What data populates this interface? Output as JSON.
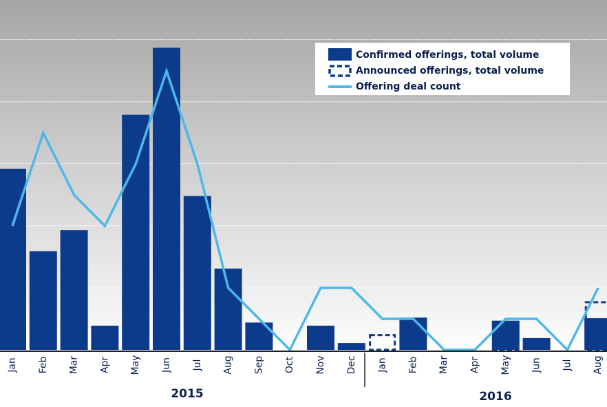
{
  "chart_data": {
    "type": "bar",
    "categories": [
      "Jan",
      "Feb",
      "Mar",
      "Apr",
      "May",
      "Jun",
      "Jul",
      "Aug",
      "Sep",
      "Oct",
      "Nov",
      "Dec",
      "Jan",
      "Feb",
      "Mar",
      "Apr",
      "May",
      "Jun",
      "Jul",
      "Aug"
    ],
    "year_groups": [
      {
        "label": "2015",
        "count": 12
      },
      {
        "label": "2016",
        "count": 8
      }
    ],
    "series": [
      {
        "name": "Confirmed offerings, total volume",
        "color": "#0d3b8c",
        "style": "solid",
        "values": [
          2.92,
          1.59,
          1.93,
          0.39,
          3.79,
          4.87,
          2.48,
          1.31,
          0.44,
          null,
          0.39,
          0.11,
          null,
          0.52,
          null,
          null,
          0.47,
          0.19,
          null,
          0.51
        ]
      },
      {
        "name": "Announced offerings, total volume",
        "color": "#0d3b8c",
        "style": "dashed",
        "values": [
          null,
          null,
          null,
          null,
          null,
          null,
          null,
          null,
          null,
          null,
          null,
          null,
          0.26,
          null,
          null,
          null,
          0.38,
          null,
          null,
          0.79
        ]
      },
      {
        "name": "Offering deal count",
        "color": "#4db8e8",
        "type": "line",
        "axis": "y2",
        "values": [
          4,
          7,
          5,
          4,
          6,
          9,
          6,
          2,
          1,
          0,
          2,
          2,
          1,
          1,
          0,
          0,
          1,
          1,
          0,
          2
        ]
      }
    ],
    "ylim": [
      0,
      5.64
    ],
    "yticks": [
      1,
      2,
      3,
      4,
      5
    ],
    "y2lim": [
      0,
      11.29
    ],
    "grid": true
  }
}
